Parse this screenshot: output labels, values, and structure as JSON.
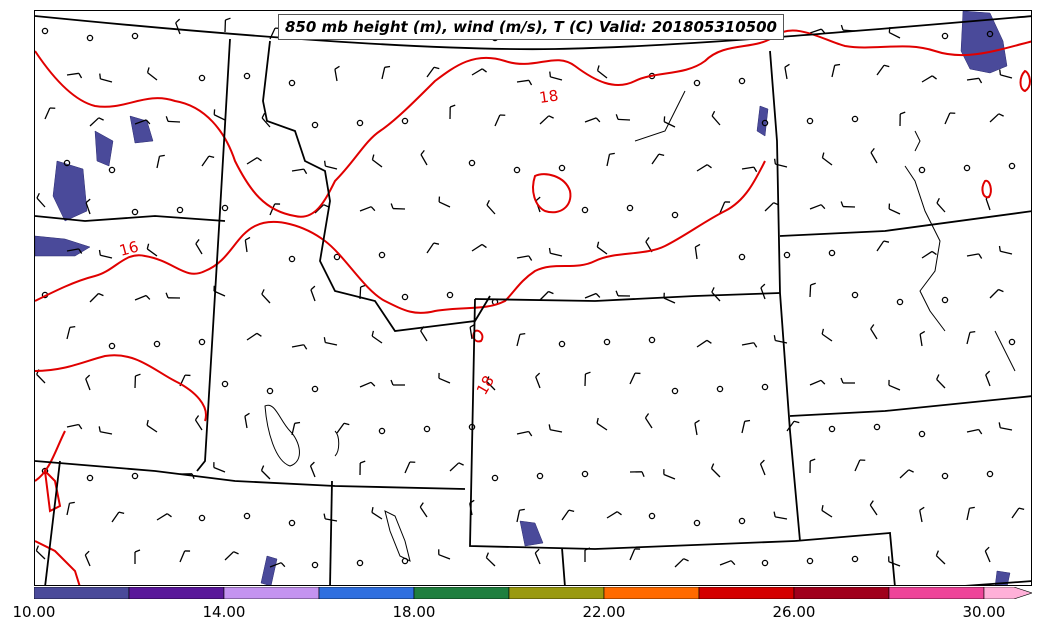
{
  "title": "850 mb height (m), wind (m/s), T (C) Valid: 201805310500",
  "contour_labels": [
    {
      "text": "18"
    },
    {
      "text": "16"
    },
    {
      "text": "18"
    }
  ],
  "colorbar": {
    "ticks": [
      "10.00",
      "14.00",
      "18.00",
      "22.00",
      "26.00",
      "30.00"
    ],
    "colors": [
      "#4a4a9a",
      "#5a189a",
      "#c493f0",
      "#2f6fdf",
      "#1f7f3f",
      "#9a9a10",
      "#ff6a00",
      "#d40000",
      "#a0001c",
      "#ee4499",
      "#ffb0d8"
    ]
  },
  "colors": {
    "temperature_contour": "#e00000",
    "boundaries": "#000000",
    "shading": "#4a4a9a"
  }
}
